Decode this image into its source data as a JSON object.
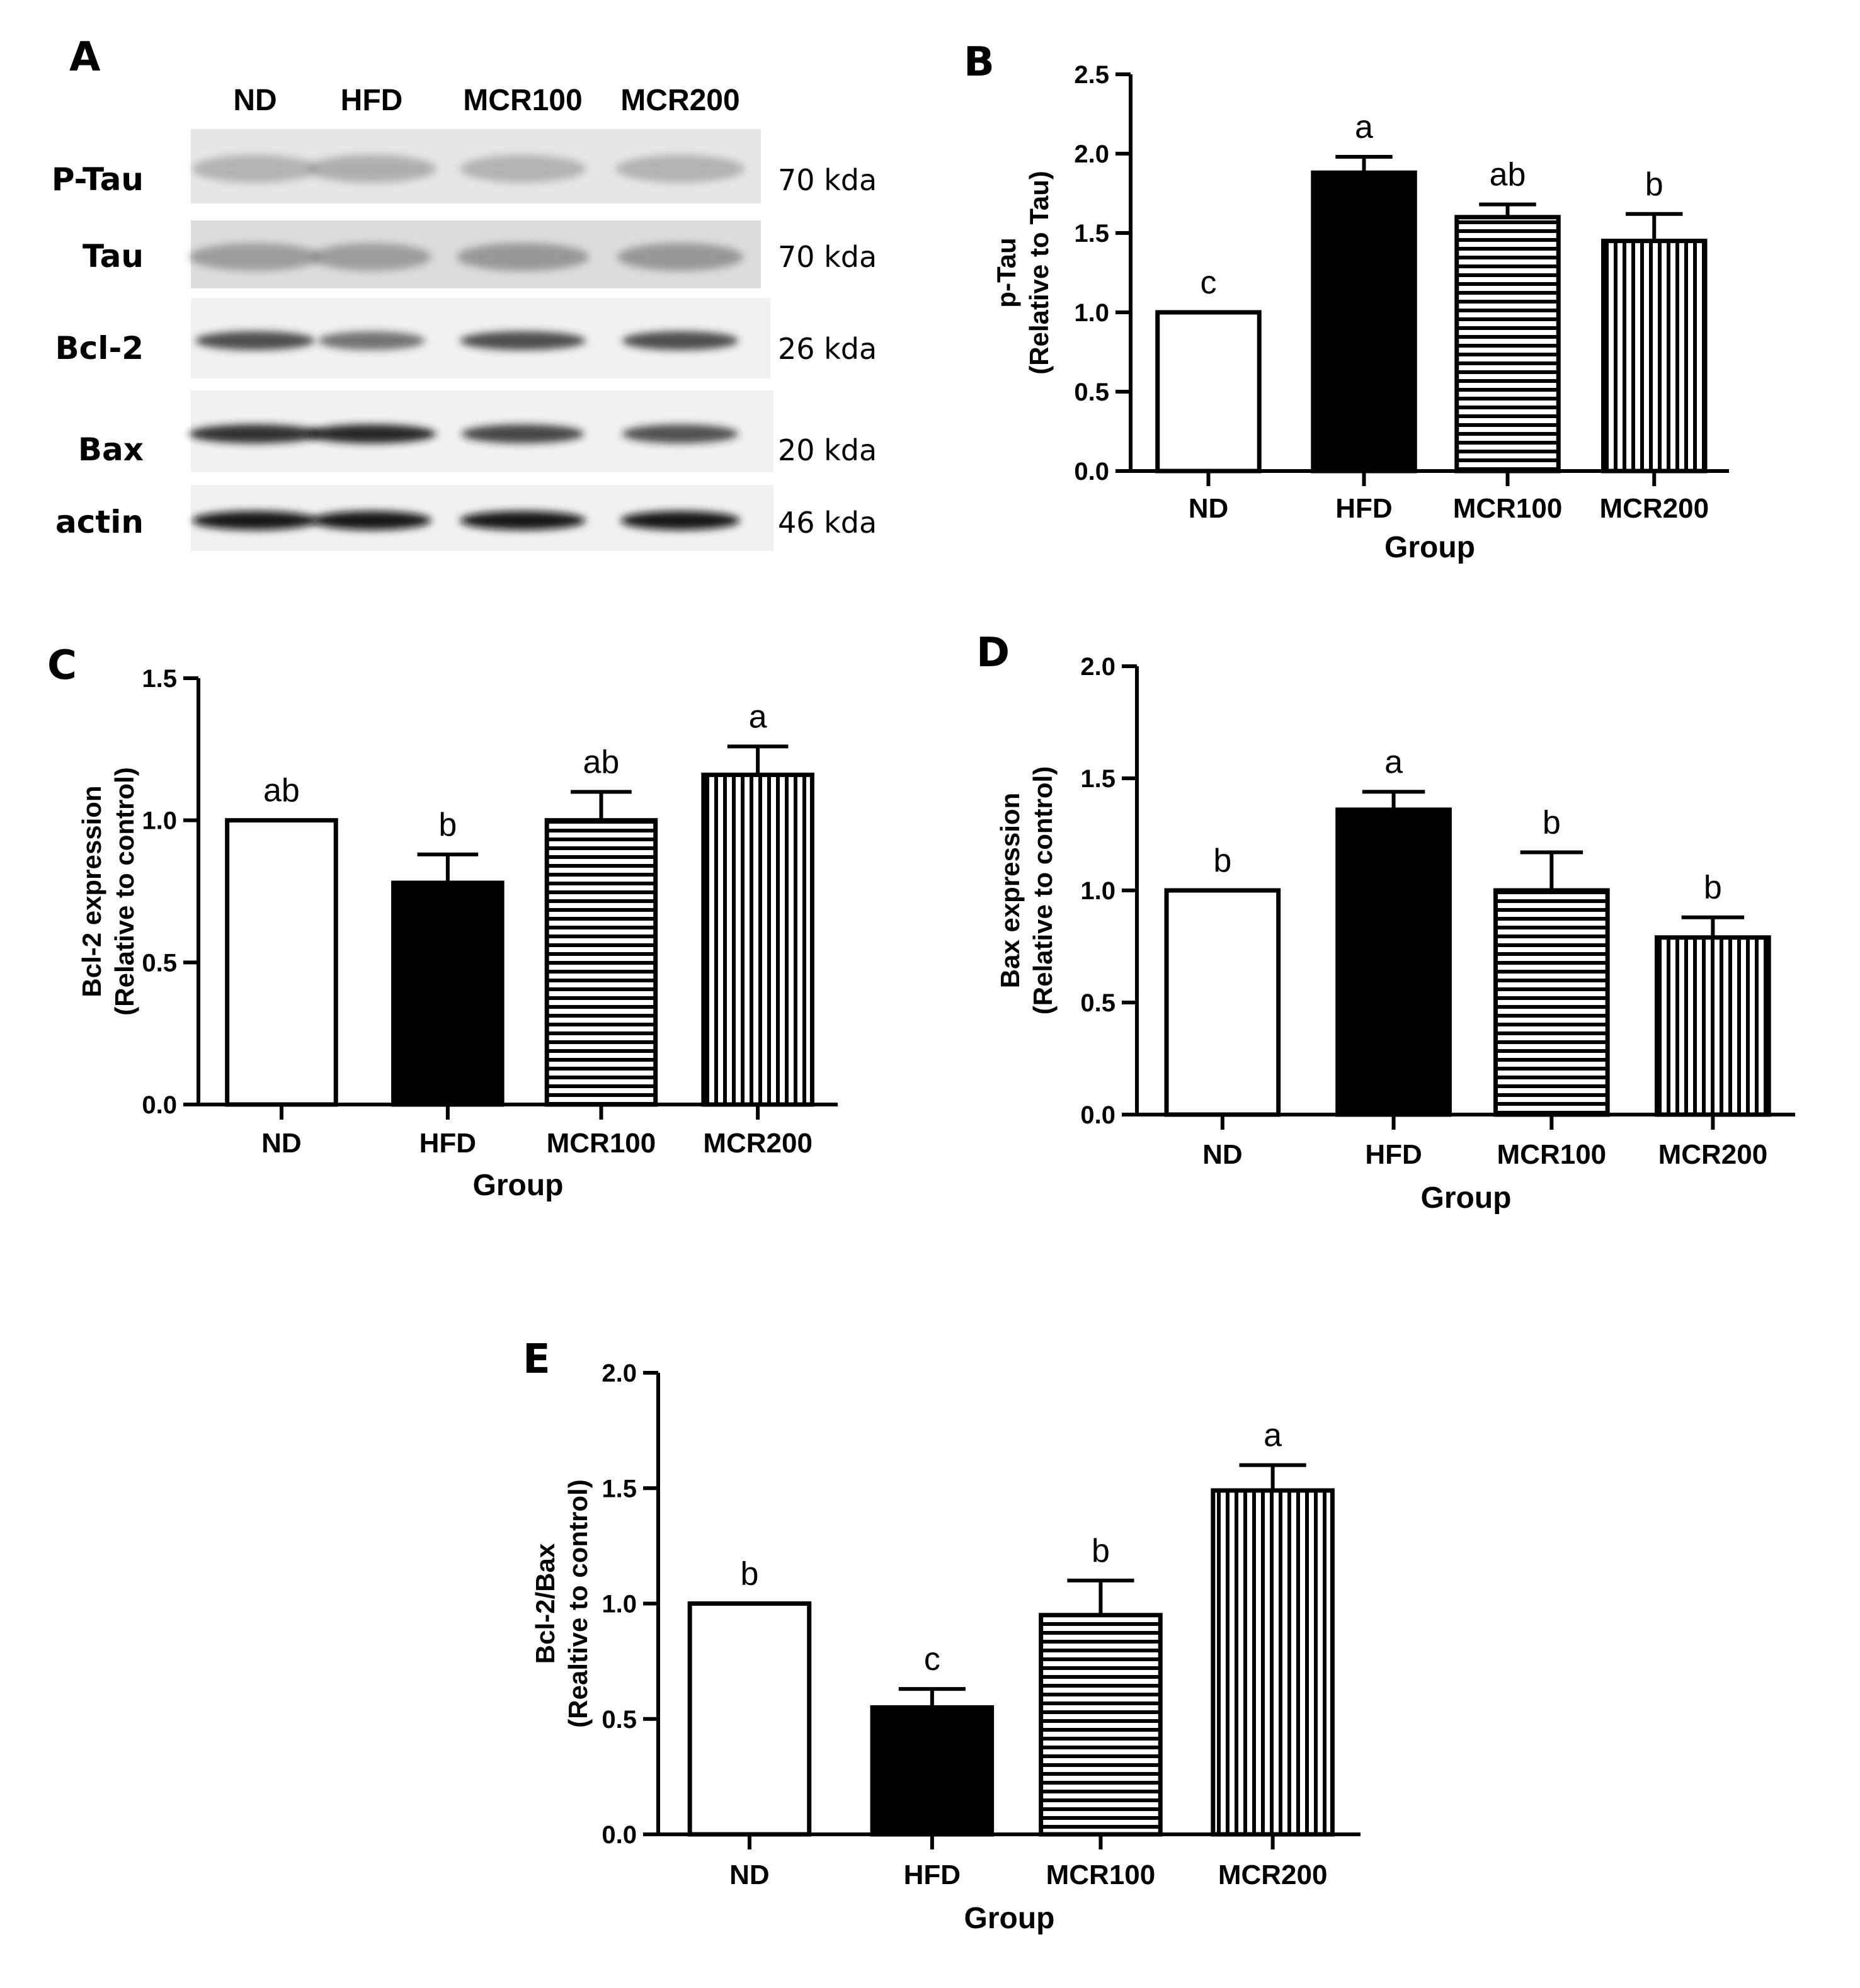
{
  "blot": {
    "letter": "A",
    "lanes": [
      "ND",
      "HFD",
      "MCR100",
      "MCR200"
    ],
    "rows": [
      {
        "protein": "P-Tau",
        "kda": "70 kda",
        "band_color": "#8a8a8a"
      },
      {
        "protein": "Tau",
        "kda": "70 kda",
        "band_color": "#6a6a6a"
      },
      {
        "protein": "Bcl-2",
        "kda": "26 kda",
        "band_color": "#333333"
      },
      {
        "protein": "Bax",
        "kda": "20 kda",
        "band_color": "#1a1a1a"
      },
      {
        "protein": "actin",
        "kda": "46 kda",
        "band_color": "#111111"
      }
    ]
  },
  "chart_data": [
    {
      "letter": "B",
      "type": "bar",
      "categories": [
        "ND",
        "HFD",
        "MCR100",
        "MCR200"
      ],
      "values": [
        1.0,
        1.88,
        1.6,
        1.45
      ],
      "errors": [
        0,
        0.1,
        0.08,
        0.17
      ],
      "significance": [
        "c",
        "a",
        "ab",
        "b"
      ],
      "ylabel_lines": [
        "p-Tau",
        "(Relative to Tau)"
      ],
      "xlabel": "Group",
      "ylim": [
        0,
        2.5
      ],
      "yticks": [
        "0.0",
        "0.5",
        "1.0",
        "1.5",
        "2.0",
        "2.5"
      ],
      "ytick_values": [
        0,
        0.5,
        1.0,
        1.5,
        2.0,
        2.5
      ],
      "fills": [
        "open",
        "solid",
        "horizontal-lines",
        "vertical-lines"
      ]
    },
    {
      "letter": "C",
      "type": "bar",
      "categories": [
        "ND",
        "HFD",
        "MCR100",
        "MCR200"
      ],
      "values": [
        1.0,
        0.78,
        1.0,
        1.16
      ],
      "errors": [
        0,
        0.1,
        0.1,
        0.1
      ],
      "significance": [
        "ab",
        "b",
        "ab",
        "a"
      ],
      "ylabel_lines": [
        "Bcl-2 expression",
        "(Relative to control)"
      ],
      "xlabel": "Group",
      "ylim": [
        0,
        1.5
      ],
      "yticks": [
        "0.0",
        "0.5",
        "1.0",
        "1.5"
      ],
      "ytick_values": [
        0,
        0.5,
        1.0,
        1.5
      ],
      "fills": [
        "open",
        "solid",
        "horizontal-lines",
        "vertical-lines"
      ]
    },
    {
      "letter": "D",
      "type": "bar",
      "categories": [
        "ND",
        "HFD",
        "MCR100",
        "MCR200"
      ],
      "values": [
        1.0,
        1.36,
        1.0,
        0.79
      ],
      "errors": [
        0,
        0.08,
        0.17,
        0.09
      ],
      "significance": [
        "b",
        "a",
        "b",
        "b"
      ],
      "ylabel_lines": [
        "Bax expression",
        "(Relative to control)"
      ],
      "xlabel": "Group",
      "ylim": [
        0,
        2.0
      ],
      "yticks": [
        "0.0",
        "0.5",
        "1.0",
        "1.5",
        "2.0"
      ],
      "ytick_values": [
        0,
        0.5,
        1.0,
        1.5,
        2.0
      ],
      "fills": [
        "open",
        "solid",
        "horizontal-lines",
        "vertical-lines"
      ]
    },
    {
      "letter": "E",
      "type": "bar",
      "categories": [
        "ND",
        "HFD",
        "MCR100",
        "MCR200"
      ],
      "values": [
        1.0,
        0.55,
        0.95,
        1.49
      ],
      "errors": [
        0,
        0.08,
        0.15,
        0.11
      ],
      "significance": [
        "b",
        "c",
        "b",
        "a"
      ],
      "ylabel_lines": [
        "Bcl-2/Bax",
        "(Realtive to control)"
      ],
      "xlabel": "Group",
      "ylim": [
        0,
        2.0
      ],
      "yticks": [
        "0.0",
        "0.5",
        "1.0",
        "1.5",
        "2.0"
      ],
      "ytick_values": [
        0,
        0.5,
        1.0,
        1.5,
        2.0
      ],
      "fills": [
        "open",
        "solid",
        "horizontal-lines",
        "vertical-lines"
      ]
    }
  ]
}
